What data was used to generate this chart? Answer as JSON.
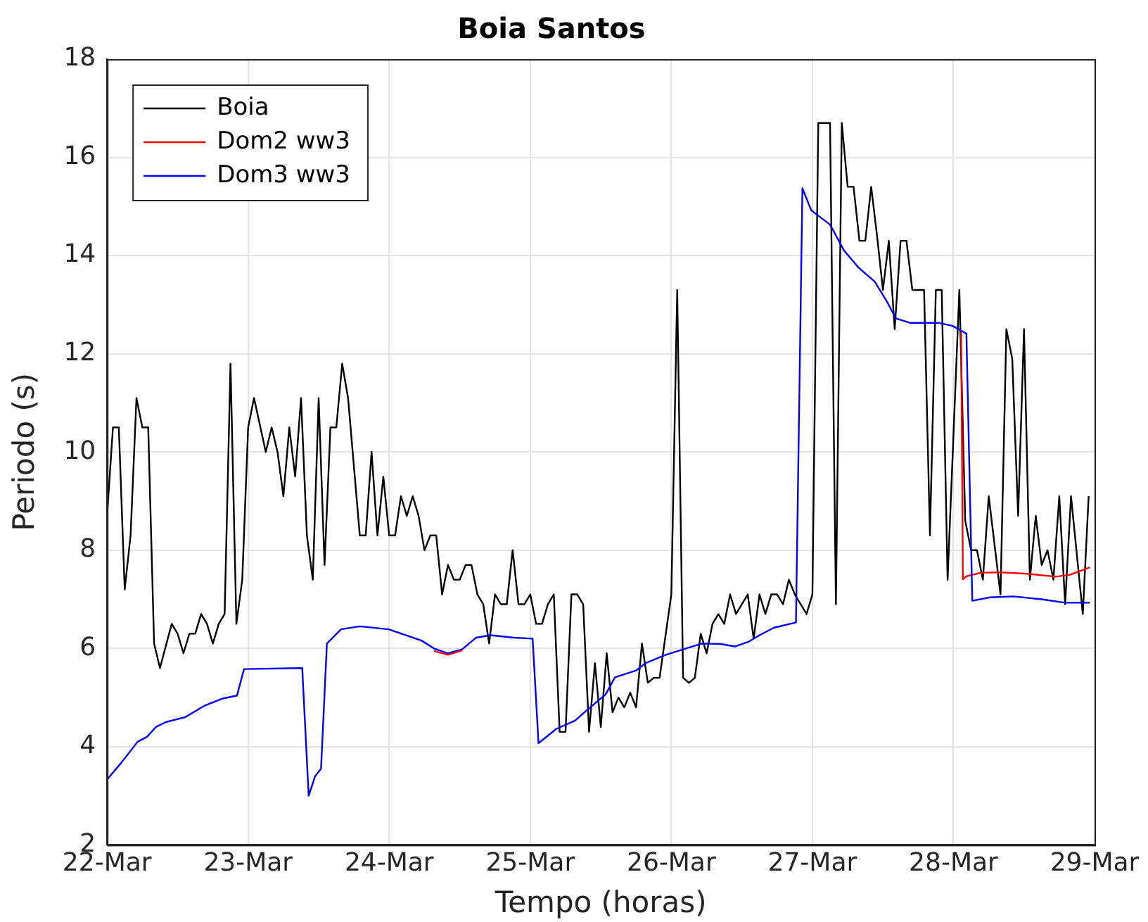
{
  "chart_data": {
    "type": "line",
    "title": "Boia Santos",
    "xlabel": "Tempo (horas)",
    "ylabel": "Periodo (s)",
    "xlim": [
      "--03-22",
      "--03-29"
    ],
    "xticks": [
      {
        "value": "--03-22",
        "label": "22-Mar"
      },
      {
        "value": "--03-23",
        "label": "23-Mar"
      },
      {
        "value": "--03-24",
        "label": "24-Mar"
      },
      {
        "value": "--03-25",
        "label": "25-Mar"
      },
      {
        "value": "--03-26",
        "label": "26-Mar"
      },
      {
        "value": "--03-27",
        "label": "27-Mar"
      },
      {
        "value": "--03-28",
        "label": "28-Mar"
      },
      {
        "value": "--03-29",
        "label": "29-Mar"
      }
    ],
    "ylim": [
      2,
      18
    ],
    "yticks": [
      2,
      4,
      6,
      8,
      10,
      12,
      14,
      16,
      18
    ],
    "grid": true,
    "legend": "top left",
    "marker": "none",
    "line_style": "solid",
    "series": [
      {
        "name": "Boia",
        "color": "#000000",
        "x": [
          "--03-22T00:00",
          "--03-22T01:00",
          "--03-22T02:00",
          "--03-22T03:00",
          "--03-22T04:00",
          "--03-22T05:00",
          "--03-22T06:00",
          "--03-22T07:00",
          "--03-22T08:00",
          "--03-22T09:00",
          "--03-22T11:00",
          "--03-22T12:00",
          "--03-22T13:00",
          "--03-22T14:00",
          "--03-22T15:00",
          "--03-22T16:00",
          "--03-22T17:00",
          "--03-22T18:00",
          "--03-22T19:00",
          "--03-22T20:00",
          "--03-22T21:00",
          "--03-22T22:00",
          "--03-22T23:00",
          "--03-23T00:00",
          "--03-23T01:00",
          "--03-23T03:00",
          "--03-23T04:00",
          "--03-23T05:00",
          "--03-23T06:00",
          "--03-23T07:00",
          "--03-23T08:00",
          "--03-23T09:00",
          "--03-23T10:00",
          "--03-23T11:00",
          "--03-23T12:00",
          "--03-23T13:00",
          "--03-23T14:00",
          "--03-23T15:00",
          "--03-23T16:00",
          "--03-23T17:00",
          "--03-23T19:00",
          "--03-23T20:00",
          "--03-23T21:00",
          "--03-23T22:00",
          "--03-23T23:00",
          "--03-24T00:00",
          "--03-24T01:00",
          "--03-24T02:00",
          "--03-24T03:00",
          "--03-24T04:00",
          "--03-24T05:00",
          "--03-24T06:00",
          "--03-24T07:00",
          "--03-24T08:00",
          "--03-24T09:00",
          "--03-24T10:00",
          "--03-24T11:00",
          "--03-24T12:00",
          "--03-24T13:00",
          "--03-24T14:00",
          "--03-24T15:00",
          "--03-24T16:00",
          "--03-24T17:00",
          "--03-24T18:00",
          "--03-24T19:00",
          "--03-24T20:00",
          "--03-24T21:00",
          "--03-24T22:00",
          "--03-24T23:00",
          "--03-25T00:00",
          "--03-25T01:00",
          "--03-25T02:00",
          "--03-25T03:00",
          "--03-25T04:00",
          "--03-25T05:00",
          "--03-25T06:00",
          "--03-25T07:00",
          "--03-25T08:00",
          "--03-25T09:00",
          "--03-25T10:00",
          "--03-25T11:00",
          "--03-25T12:00",
          "--03-25T13:00",
          "--03-25T14:00",
          "--03-25T15:00",
          "--03-25T16:00",
          "--03-25T17:00",
          "--03-25T18:00",
          "--03-25T19:00",
          "--03-25T20:00",
          "--03-25T21:00",
          "--03-25T22:00",
          "--03-26T00:00",
          "--03-26T01:00",
          "--03-26T02:00",
          "--03-26T03:00",
          "--03-26T04:00",
          "--03-26T05:00",
          "--03-26T06:00",
          "--03-26T07:00",
          "--03-26T08:00",
          "--03-26T09:00",
          "--03-26T10:00",
          "--03-26T11:00",
          "--03-26T13:00",
          "--03-26T14:00",
          "--03-26T15:00",
          "--03-26T16:00",
          "--03-26T17:00",
          "--03-26T18:00",
          "--03-26T19:00",
          "--03-26T20:00",
          "--03-26T21:00",
          "--03-26T22:00",
          "--03-26T23:00",
          "--03-27T00:00",
          "--03-27T01:00",
          "--03-27T03:00",
          "--03-27T04:00",
          "--03-27T05:00",
          "--03-27T06:00",
          "--03-27T07:00",
          "--03-27T08:00",
          "--03-27T09:00",
          "--03-27T10:00",
          "--03-27T11:00",
          "--03-27T12:00",
          "--03-27T13:00",
          "--03-27T14:00",
          "--03-27T15:00",
          "--03-27T16:00",
          "--03-27T17:00",
          "--03-27T19:00",
          "--03-27T20:00",
          "--03-27T21:00",
          "--03-27T22:00",
          "--03-27T23:00",
          "--03-28T01:00",
          "--03-28T02:00",
          "--03-28T03:00",
          "--03-28T04:00",
          "--03-28T05:00",
          "--03-28T06:00",
          "--03-28T08:00",
          "--03-28T09:00",
          "--03-28T10:00",
          "--03-28T11:00",
          "--03-28T12:00",
          "--03-28T13:00",
          "--03-28T14:00",
          "--03-28T15:00",
          "--03-28T16:00",
          "--03-28T17:00",
          "--03-28T18:00",
          "--03-28T19:00",
          "--03-28T20:00",
          "--03-28T22:00",
          "--03-28T23:00"
        ],
        "values": [
          8.7,
          10.5,
          10.5,
          7.2,
          8.3,
          11.1,
          10.5,
          10.5,
          6.1,
          5.6,
          6.5,
          6.3,
          5.9,
          6.3,
          6.3,
          6.7,
          6.5,
          6.1,
          6.5,
          6.7,
          11.8,
          6.5,
          7.4,
          10.5,
          11.1,
          10,
          10.5,
          10,
          9.1,
          10.5,
          9.5,
          11.1,
          8.3,
          7.4,
          11.1,
          7.7,
          10.5,
          10.5,
          11.8,
          11.1,
          8.3,
          8.3,
          10,
          8.3,
          9.5,
          8.3,
          8.3,
          9.1,
          8.7,
          9.1,
          8.7,
          8,
          8.3,
          8.3,
          7.1,
          7.7,
          7.4,
          7.4,
          7.7,
          7.7,
          7.1,
          6.9,
          6.1,
          7.1,
          6.9,
          6.9,
          8,
          6.9,
          6.9,
          7.1,
          6.5,
          6.5,
          6.9,
          7.1,
          4.3,
          4.3,
          7.1,
          7.1,
          6.9,
          4.3,
          5.7,
          4.4,
          5.9,
          4.7,
          5,
          4.8,
          5.1,
          4.8,
          6.1,
          5.3,
          5.4,
          5.4,
          7.1,
          13.3,
          5.4,
          5.3,
          5.4,
          6.3,
          5.9,
          6.5,
          6.7,
          6.5,
          7.1,
          6.7,
          7.1,
          6.2,
          7.1,
          6.7,
          7.1,
          7.1,
          6.9,
          7.4,
          7.1,
          6.9,
          6.7,
          7.1,
          16.7,
          16.7,
          6.9,
          16.7,
          15.4,
          15.4,
          14.3,
          14.3,
          15.4,
          14.4,
          13.3,
          14.3,
          12.5,
          14.3,
          14.3,
          13.3,
          13.3,
          8.3,
          13.3,
          13.3,
          7.4,
          13.3,
          8.6,
          8,
          8,
          7.4,
          9.1,
          7.1,
          12.5,
          11.9,
          8.7,
          12.5,
          7.4,
          8.7,
          7.7,
          8,
          7.4,
          9.1,
          6.9,
          9.1,
          6.7,
          9.1
        ]
      },
      {
        "name": "Dom2 ww3",
        "color": "#ff0000",
        "x": [
          "--03-28T01:18",
          "--03-28T01:36",
          "--03-28T02:12",
          "--03-28T04:36",
          "--03-28T07:48",
          "--03-28T12:36",
          "--03-28T17:24",
          "--03-28T19:48",
          "--03-28T23:12"
        ],
        "values": [
          12.45,
          7.41,
          7.47,
          7.54,
          7.55,
          7.52,
          7.46,
          7.5,
          7.65
        ]
      },
      {
        "name": "Dom3 ww3",
        "color": "#0000ff",
        "x": [
          "--03-22T00:00",
          "--03-22T02:24",
          "--03-22T05:12",
          "--03-22T06:48",
          "--03-22T08:18",
          "--03-22T10:00",
          "--03-22T13:18",
          "--03-22T16:30",
          "--03-22T19:42",
          "--03-22T22:06",
          "--03-22T23:18",
          "--03-23T09:12",
          "--03-23T10:18",
          "--03-23T11:24",
          "--03-23T12:24",
          "--03-23T13:24",
          "--03-23T15:48",
          "--03-23T19:00",
          "--03-23T23:54",
          "--03-24T05:30",
          "--03-24T07:36",
          "--03-24T10:00",
          "--03-24T12:24",
          "--03-24T14:48",
          "--03-24T17:12",
          "--03-24T21:12",
          "--03-25T00:24",
          "--03-25T01:24",
          "--03-25T04:24",
          "--03-25T07:36",
          "--03-25T10:00",
          "--03-25T12:48",
          "--03-25T14:24",
          "--03-25T18:00",
          "--03-25T19:36",
          "--03-25T22:48",
          "--03-26T02:00",
          "--03-26T05:12",
          "--03-26T08:24",
          "--03-26T10:48",
          "--03-26T13:12",
          "--03-26T15:00",
          "--03-26T17:24",
          "--03-26T21:12",
          "--03-26T22:18",
          "--03-26T23:48",
          "--03-27T03:00",
          "--03-27T05:24",
          "--03-27T07:48",
          "--03-27T10:36",
          "--03-27T12:36",
          "--03-27T14:12",
          "--03-27T16:36",
          "--03-27T21:24",
          "--03-27T23:48",
          "--03-28T02:12",
          "--03-28T03:12",
          "--03-28T06:12",
          "--03-28T10:12",
          "--03-28T15:00",
          "--03-28T19:00",
          "--03-28T23:12"
        ],
        "values": [
          3.33,
          3.67,
          4.1,
          4.2,
          4.4,
          4.5,
          4.6,
          4.83,
          4.98,
          5.04,
          5.58,
          5.6,
          3,
          3.4,
          3.55,
          6.1,
          6.39,
          6.45,
          6.39,
          6.16,
          6,
          5.9,
          5.98,
          6.22,
          6.27,
          6.22,
          6.2,
          4.07,
          4.36,
          4.53,
          4.78,
          5.06,
          5.41,
          5.55,
          5.7,
          5.86,
          5.98,
          6.1,
          6.09,
          6.04,
          6.14,
          6.27,
          6.42,
          6.53,
          15.37,
          14.92,
          14.63,
          14.1,
          13.76,
          13.47,
          13.08,
          12.72,
          12.63,
          12.63,
          12.57,
          12.41,
          6.97,
          7.04,
          7.06,
          7,
          6.93,
          6.93
        ]
      },
      {
        "color": "#ff0000",
        "x": [
          "--03-24T07:36",
          "--03-24T10:00",
          "--03-24T12:24"
        ],
        "values": [
          5.95,
          5.87,
          5.96
        ]
      }
    ]
  }
}
